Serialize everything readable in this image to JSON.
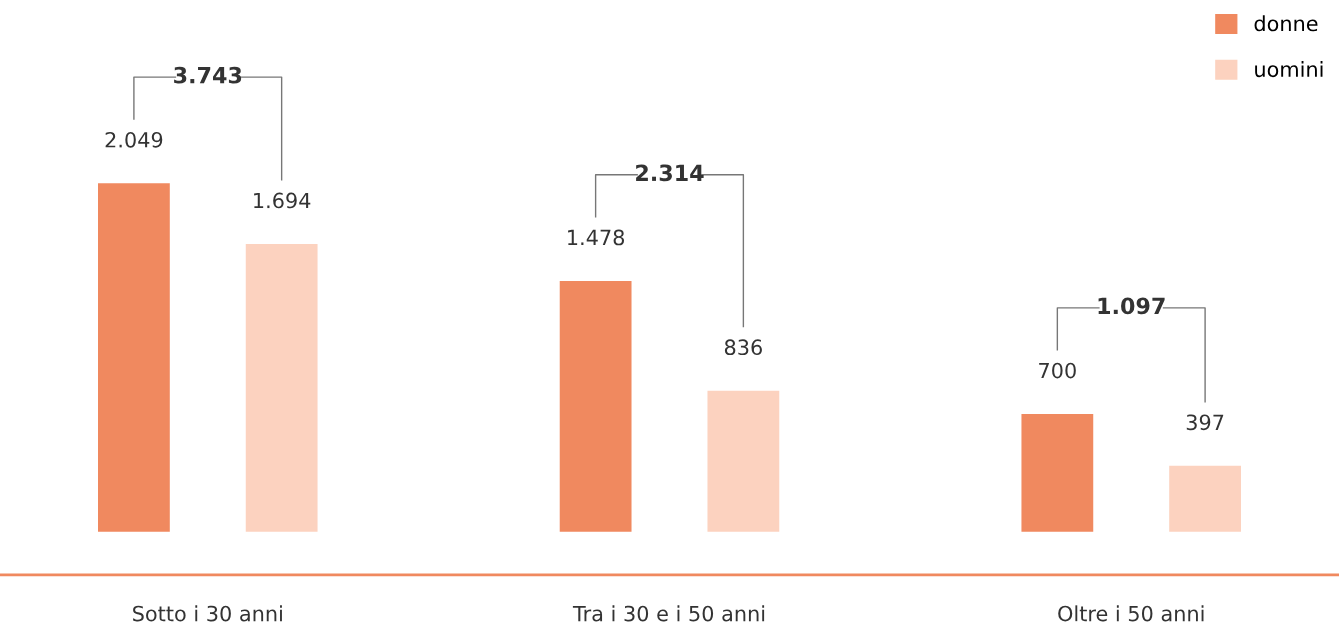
{
  "chart_data": {
    "type": "bar",
    "categories": [
      "Sotto i 30 anni",
      "Tra i 30 e i 50 anni",
      "Oltre i 50 anni"
    ],
    "series": [
      {
        "name": "donne",
        "color": "#f0895f",
        "values": [
          2049,
          1478,
          700
        ],
        "value_labels": [
          "2.049",
          "1.478",
          "700"
        ]
      },
      {
        "name": "uomini",
        "color": "#fcd2bf",
        "values": [
          1694,
          836,
          397
        ],
        "value_labels": [
          "1.694",
          "836",
          "397"
        ]
      }
    ],
    "annotations": [
      "3.743",
      "2.314",
      "1.097"
    ],
    "legend": "top right",
    "grid": false
  }
}
